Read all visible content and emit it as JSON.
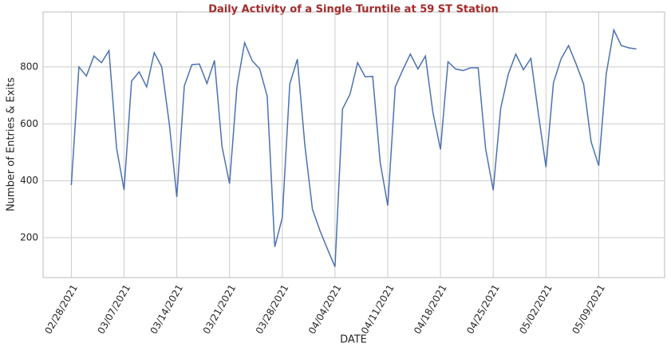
{
  "chart_data": {
    "type": "line",
    "title": "Daily Activity of a Single Turntile at 59 ST Station",
    "xlabel": "DATE",
    "ylabel": "Number of Entries & Exits",
    "x": [
      "02/28/2021",
      "03/01/2021",
      "03/02/2021",
      "03/03/2021",
      "03/04/2021",
      "03/05/2021",
      "03/06/2021",
      "03/07/2021",
      "03/08/2021",
      "03/09/2021",
      "03/10/2021",
      "03/11/2021",
      "03/12/2021",
      "03/13/2021",
      "03/14/2021",
      "03/15/2021",
      "03/16/2021",
      "03/17/2021",
      "03/18/2021",
      "03/19/2021",
      "03/20/2021",
      "03/21/2021",
      "03/22/2021",
      "03/23/2021",
      "03/24/2021",
      "03/25/2021",
      "03/26/2021",
      "03/27/2021",
      "03/28/2021",
      "03/29/2021",
      "03/30/2021",
      "03/31/2021",
      "04/01/2021",
      "04/02/2021",
      "04/03/2021",
      "04/04/2021",
      "04/05/2021",
      "04/06/2021",
      "04/07/2021",
      "04/08/2021",
      "04/09/2021",
      "04/10/2021",
      "04/11/2021",
      "04/12/2021",
      "04/13/2021",
      "04/14/2021",
      "04/15/2021",
      "04/16/2021",
      "04/17/2021",
      "04/18/2021",
      "04/19/2021",
      "04/20/2021",
      "04/21/2021",
      "04/22/2021",
      "04/23/2021",
      "04/24/2021",
      "04/25/2021",
      "04/26/2021",
      "04/27/2021",
      "04/28/2021",
      "04/29/2021",
      "04/30/2021",
      "05/01/2021",
      "05/02/2021",
      "05/03/2021",
      "05/04/2021",
      "05/05/2021",
      "05/06/2021",
      "05/07/2021",
      "05/08/2021",
      "05/09/2021",
      "05/10/2021",
      "05/11/2021",
      "05/12/2021",
      "05/13/2021",
      "05/14/2021"
    ],
    "values": [
      385,
      800,
      768,
      838,
      815,
      857,
      515,
      368,
      750,
      783,
      730,
      850,
      800,
      600,
      343,
      733,
      808,
      810,
      742,
      823,
      520,
      390,
      733,
      885,
      822,
      793,
      697,
      168,
      270,
      740,
      827,
      525,
      300,
      225,
      160,
      98,
      652,
      705,
      815,
      765,
      767,
      465,
      313,
      730,
      790,
      845,
      793,
      838,
      640,
      510,
      818,
      793,
      787,
      797,
      797,
      512,
      367,
      655,
      775,
      845,
      790,
      830,
      635,
      448,
      745,
      828,
      875,
      810,
      740,
      537,
      453,
      775,
      930,
      875,
      867,
      863
    ],
    "color": "#4c72b0",
    "xticks": [
      "02/28/2021",
      "03/07/2021",
      "03/14/2021",
      "03/21/2021",
      "03/28/2021",
      "04/04/2021",
      "04/11/2021",
      "04/18/2021",
      "04/25/2021",
      "05/02/2021",
      "05/09/2021"
    ],
    "ylim": [
      60,
      993
    ],
    "yticks": [
      200,
      400,
      600,
      800
    ],
    "grid": true
  }
}
